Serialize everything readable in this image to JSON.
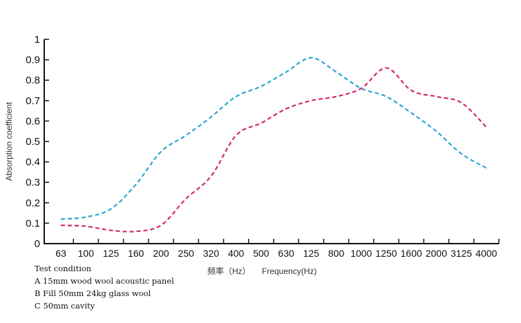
{
  "chart_data": {
    "type": "line",
    "title": "",
    "xlabel_cn": "频率（Hz）",
    "xlabel": "Frequency(Hz)",
    "ylabel": "Absorption coefficient",
    "ylim": [
      0,
      1
    ],
    "yticks": [
      "0",
      "0.1",
      "0.2",
      "0.3",
      "0.4",
      "0.5",
      "0.6",
      "0.7",
      "0.8",
      "0.9",
      "1"
    ],
    "categories": [
      "63",
      "100",
      "125",
      "160",
      "200",
      "250",
      "320",
      "400",
      "500",
      "630",
      "125",
      "800",
      "1000",
      "1250",
      "1600",
      "2000",
      "3125",
      "4000"
    ],
    "grid": false,
    "series": [
      {
        "name": "blue",
        "color": "#2aa7cf",
        "values": [
          0.12,
          0.13,
          0.17,
          0.29,
          0.45,
          0.53,
          0.62,
          0.72,
          0.77,
          0.84,
          0.91,
          0.84,
          0.76,
          0.72,
          0.64,
          0.55,
          0.44,
          0.37
        ]
      },
      {
        "name": "pink",
        "color": "#d4286f",
        "values": [
          0.09,
          0.085,
          0.065,
          0.06,
          0.09,
          0.22,
          0.33,
          0.53,
          0.59,
          0.66,
          0.7,
          0.72,
          0.76,
          0.86,
          0.75,
          0.72,
          0.69,
          0.57
        ]
      }
    ]
  },
  "notes": {
    "title": "Test condition",
    "lines": [
      "A 15mm wood wool acoustic panel",
      "B Fill 50mm 24kg glass wool",
      "C 50mm cavity"
    ]
  }
}
